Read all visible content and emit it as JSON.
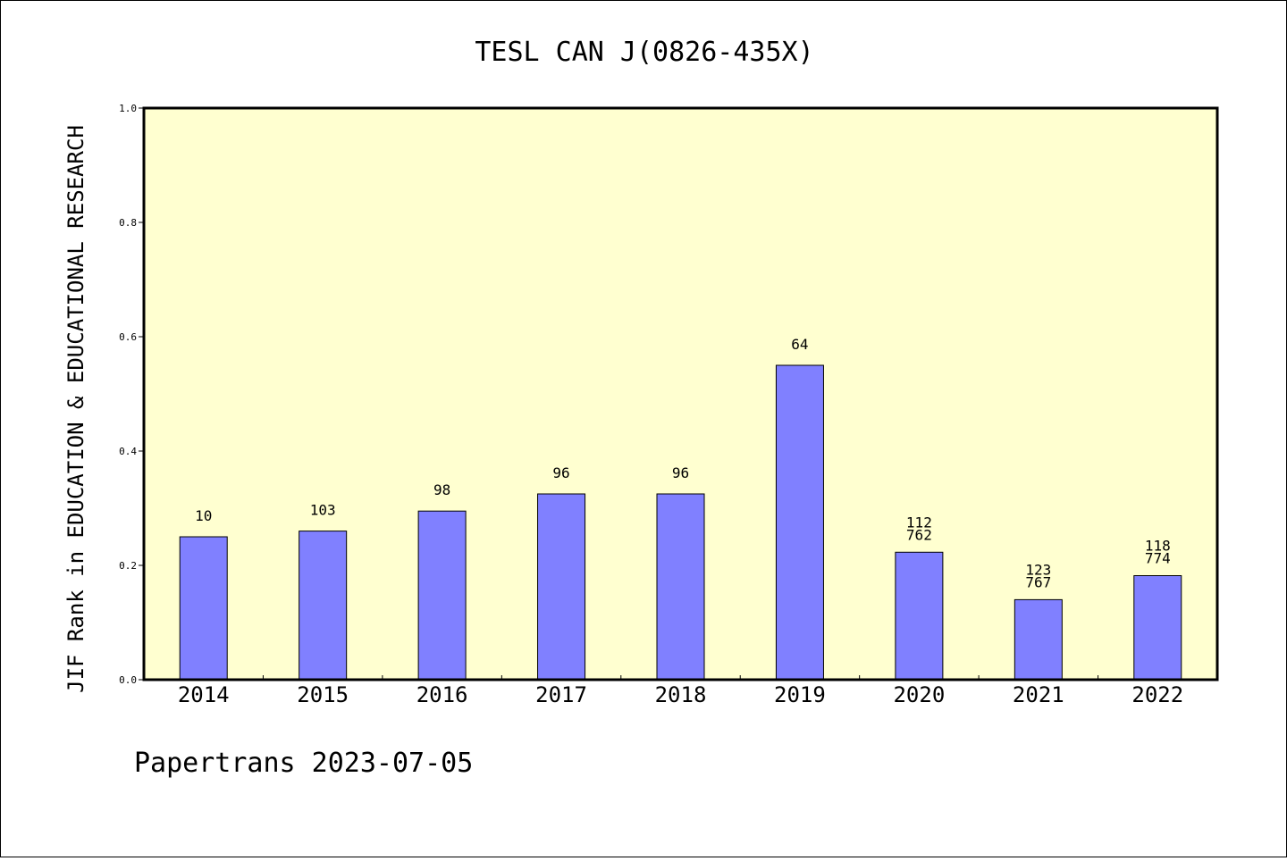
{
  "chart_data": {
    "type": "bar",
    "title": "TESL CAN J(0826-435X)",
    "xlabel": "",
    "ylabel": "JIF Rank in EDUCATION & EDUCATIONAL RESEARCH",
    "ylim": [
      0,
      1.0
    ],
    "yticks": [
      "0.0",
      "0.2",
      "0.4",
      "0.6",
      "0.8",
      "1.0"
    ],
    "categories": [
      "2014",
      "2015",
      "2016",
      "2017",
      "2018",
      "2019",
      "2020",
      "2021",
      "2022"
    ],
    "values": [
      0.25,
      0.26,
      0.295,
      0.325,
      0.325,
      0.55,
      0.223,
      0.14,
      0.182
    ],
    "labels": [
      [
        "10"
      ],
      [
        "103"
      ],
      [
        "98"
      ],
      [
        "96"
      ],
      [
        "96"
      ],
      [
        "64"
      ],
      [
        "112",
        "762"
      ],
      [
        "123",
        "767"
      ],
      [
        "118",
        "774"
      ]
    ],
    "bar_color": "#8080ff",
    "plot_background": "#ffffd0",
    "grid": false,
    "legend": "none"
  },
  "footer": {
    "text": "Papertrans 2023-07-05"
  }
}
